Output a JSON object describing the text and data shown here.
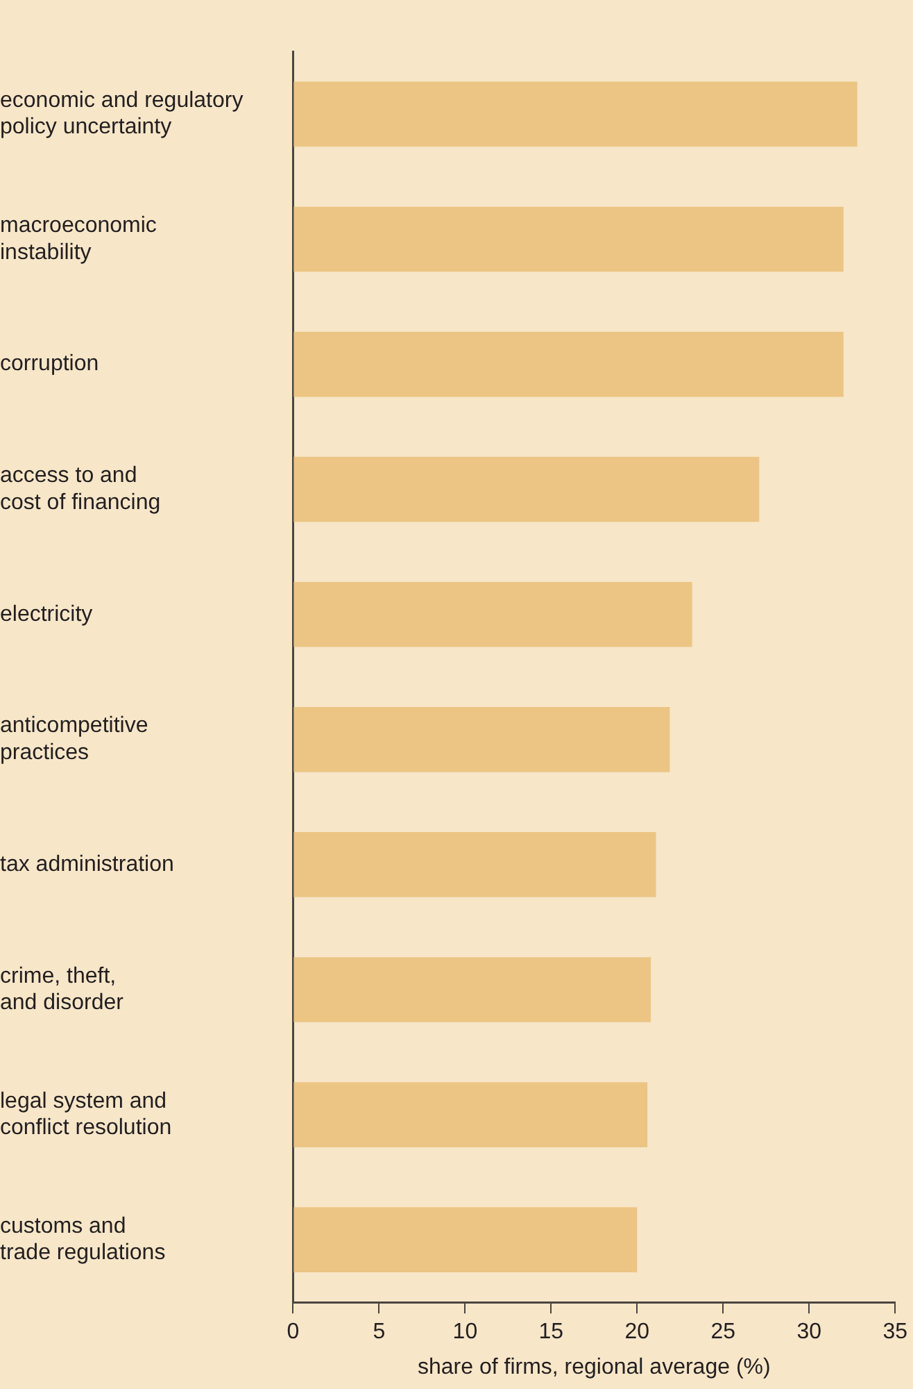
{
  "chart_data": {
    "type": "bar",
    "orientation": "horizontal",
    "xlabel": "share of firms, regional average (%)",
    "categories": [
      "economic and regulatory\npolicy uncertainty",
      "macroeconomic\ninstability",
      "corruption",
      "access to and\ncost of financing",
      "electricity",
      "anticompetitive\npractices",
      "tax administration",
      "crime, theft,\nand disorder",
      "legal system and\nconflict resolution",
      "customs and\ntrade regulations"
    ],
    "values": [
      32.8,
      32.0,
      32.0,
      27.1,
      23.2,
      21.9,
      21.1,
      20.8,
      20.6,
      20.0
    ],
    "color": "#ecc584",
    "xlim": [
      0,
      35
    ],
    "xticks": [
      0,
      5,
      10,
      15,
      20,
      25,
      30,
      35
    ],
    "grid": false,
    "legend": false
  }
}
